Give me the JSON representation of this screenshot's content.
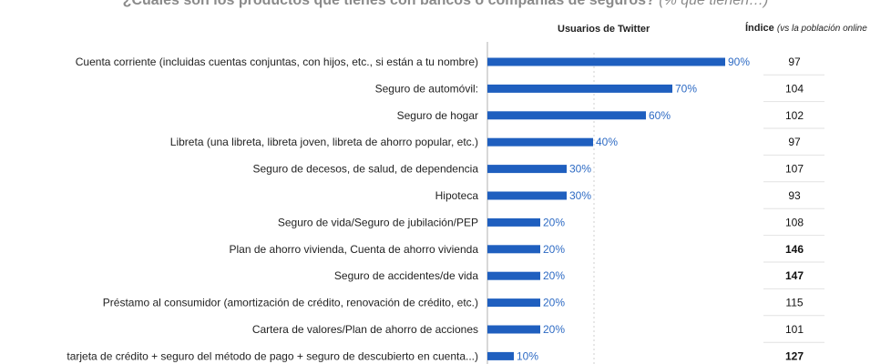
{
  "header": {
    "title": "¿Cuáles son los productos que tienes con bancos o compañías de seguros?",
    "title_suffix": "(% que tienen…)",
    "series_label": "Usuarios de Twitter",
    "index_label": "Índice",
    "index_note": "(vs la población online"
  },
  "colors": {
    "bar": "#1f5fbf",
    "value_text": "#2e6bc4",
    "axis": "#b0b0b0"
  },
  "chart_data": {
    "type": "bar",
    "orientation": "horizontal",
    "title": "¿Cuáles son los productos que tienes con bancos o compañías de seguros? (% que tienen…)",
    "series": [
      {
        "name": "Usuarios de Twitter",
        "values": [
          90,
          70,
          60,
          40,
          30,
          30,
          20,
          20,
          20,
          20,
          20,
          10
        ]
      }
    ],
    "value_labels": [
      "90%",
      "70%",
      "60%",
      "40%",
      "30%",
      "30%",
      "20%",
      "20%",
      "20%",
      "20%",
      "20%",
      "10%"
    ],
    "categories": [
      "Cuenta corriente (incluidas cuentas conjuntas, con hijos, etc., si están a tu nombre)",
      "Seguro de automóvil:",
      "Seguro de hogar",
      "Libreta (una libreta, libreta joven, libreta de ahorro popular, etc.)",
      "Seguro de decesos, de salud, de dependencia",
      "Hipoteca",
      "Seguro de vida/Seguro de jubilación/PEP",
      "Plan de ahorro vivienda, Cuenta de ahorro vivienda",
      "Seguro de accidentes/de vida",
      "Préstamo al consumidor (amortización de crédito, renovación de crédito, etc.)",
      "Cartera de valores/Plan de ahorro de acciones",
      "tarjeta de crédito + seguro del método de pago + seguro de descubierto en cuenta...)"
    ],
    "index_values": [
      "97",
      "104",
      "102",
      "97",
      "107",
      "93",
      "108",
      "146",
      "147",
      "115",
      "101",
      "127"
    ],
    "index_bold": [
      false,
      false,
      false,
      false,
      false,
      false,
      false,
      true,
      true,
      false,
      false,
      true
    ],
    "xlim": [
      0,
      100
    ],
    "xlabel": "",
    "ylabel": ""
  }
}
